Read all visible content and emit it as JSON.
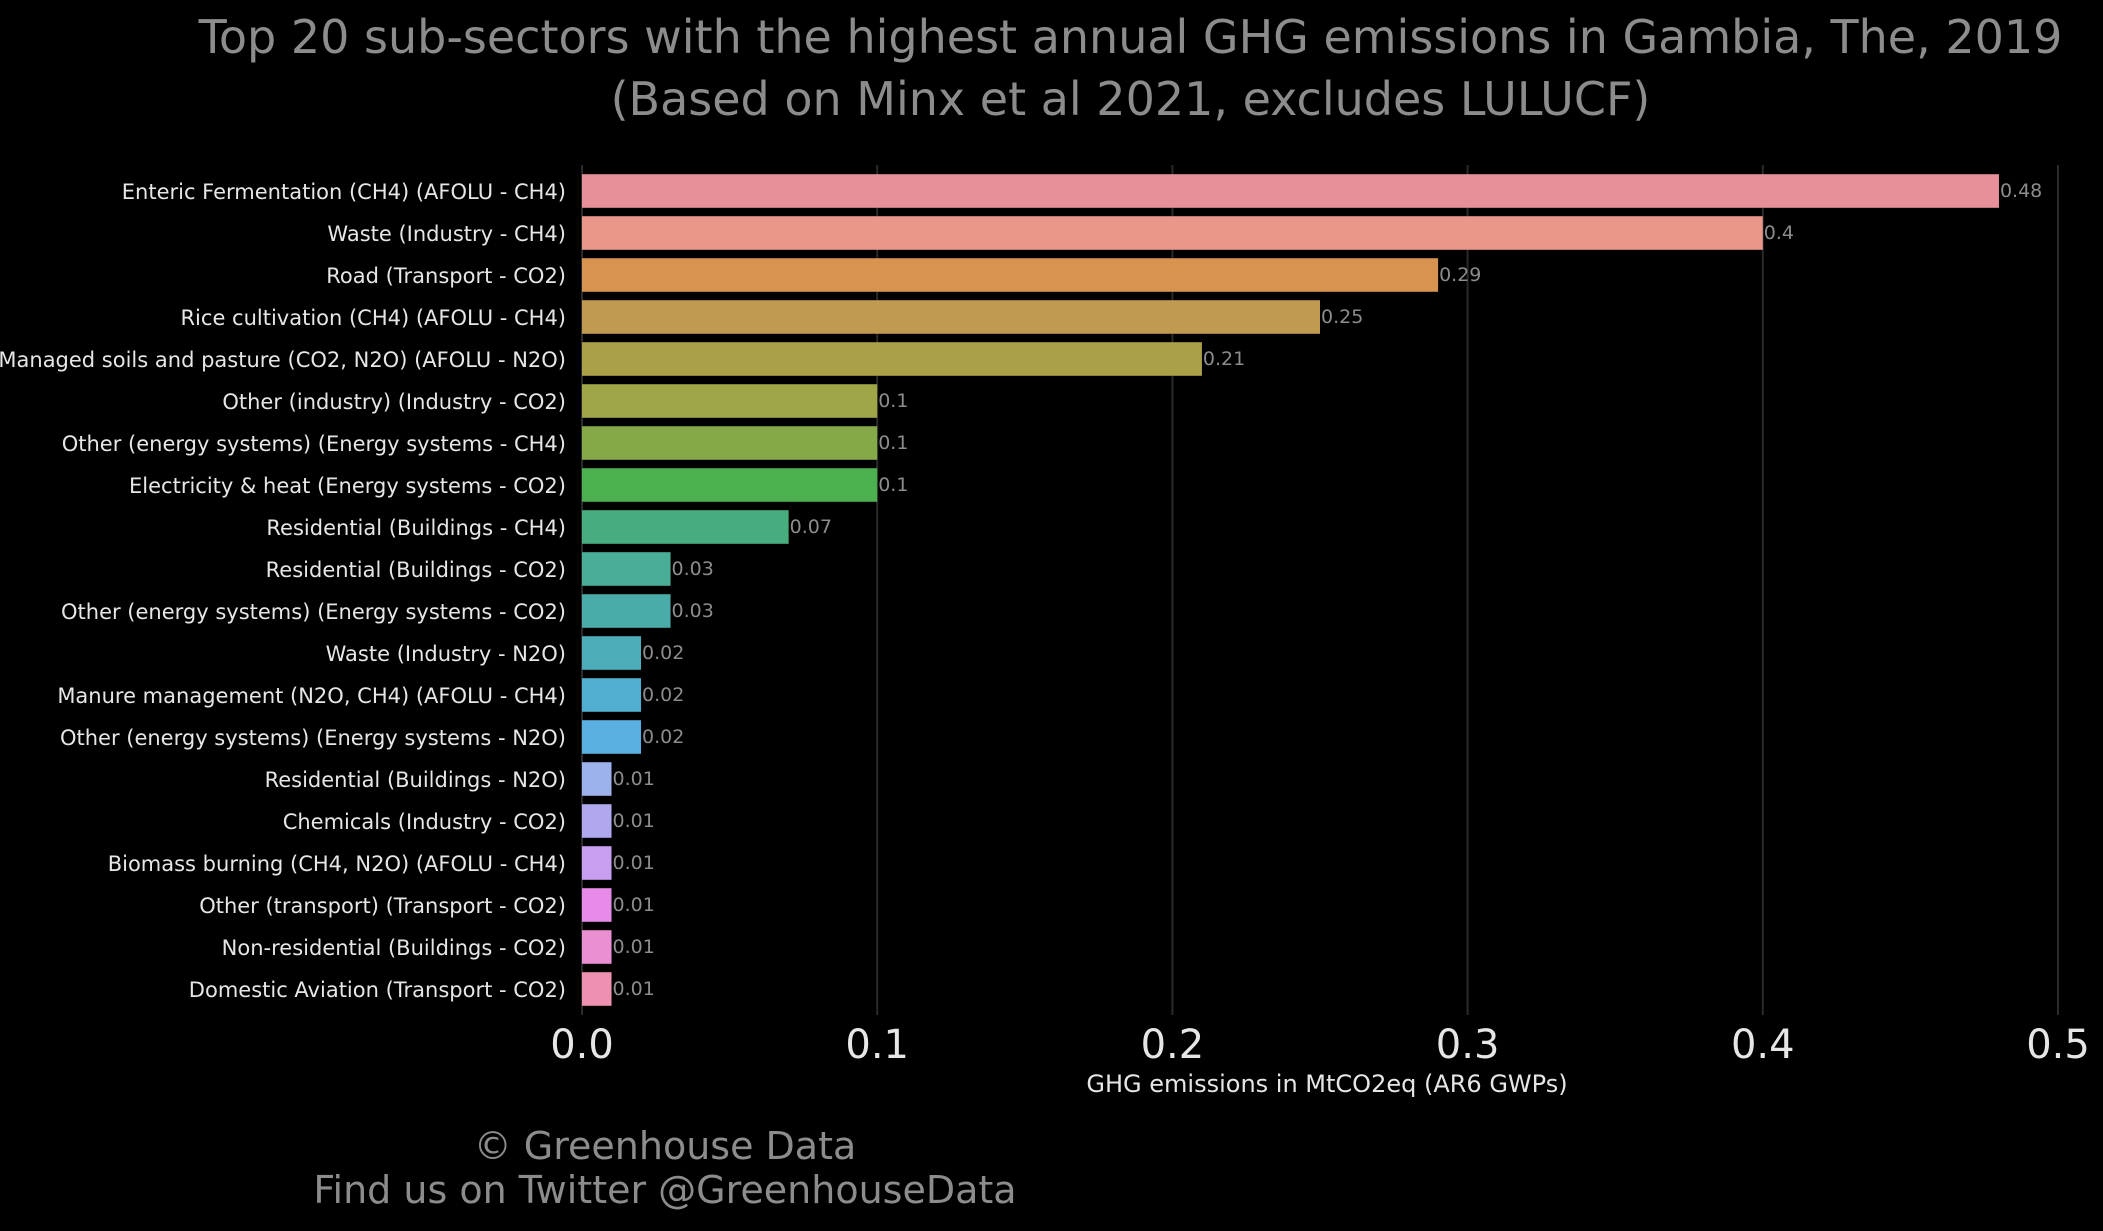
{
  "chart_data": {
    "type": "bar",
    "orientation": "horizontal",
    "title": "Top 20 sub-sectors with the highest annual GHG emissions in Gambia, The, 2019",
    "subtitle": "(Based on Minx et al 2021, excludes LULUCF)",
    "xlabel": "GHG emissions in MtCO2eq (AR6 GWPs)",
    "ylabel": "",
    "xlim": [
      0,
      0.5
    ],
    "xticks": [
      "0.0",
      "0.1",
      "0.2",
      "0.3",
      "0.4",
      "0.5"
    ],
    "grid": "vertical",
    "categories": [
      "Enteric Fermentation (CH4) (AFOLU - CH4)",
      "Waste (Industry - CH4)",
      "Road (Transport - CO2)",
      "Rice cultivation (CH4) (AFOLU - CH4)",
      "Managed soils and pasture (CO2, N2O) (AFOLU - N2O)",
      "Other (industry) (Industry - CO2)",
      "Other (energy systems) (Energy systems - CH4)",
      "Electricity & heat (Energy systems - CO2)",
      "Residential (Buildings - CH4)",
      "Residential (Buildings - CO2)",
      "Other (energy systems) (Energy systems - CO2)",
      "Waste (Industry - N2O)",
      "Manure management (N2O, CH4) (AFOLU - CH4)",
      "Other (energy systems) (Energy systems - N2O)",
      "Residential (Buildings - N2O)",
      "Chemicals (Industry - CO2)",
      "Biomass burning (CH4, N2O) (AFOLU - CH4)",
      "Other (transport) (Transport - CO2)",
      "Non-residential (Buildings - CO2)",
      "Domestic Aviation (Transport - CO2)"
    ],
    "values": [
      0.48,
      0.4,
      0.29,
      0.25,
      0.21,
      0.1,
      0.1,
      0.1,
      0.07,
      0.03,
      0.03,
      0.02,
      0.02,
      0.02,
      0.01,
      0.01,
      0.01,
      0.01,
      0.01,
      0.01
    ],
    "value_labels": [
      "0.48",
      "0.4",
      "0.29",
      "0.25",
      "0.21",
      "0.1",
      "0.1",
      "0.1",
      "0.07",
      "0.03",
      "0.03",
      "0.02",
      "0.02",
      "0.02",
      "0.01",
      "0.01",
      "0.01",
      "0.01",
      "0.01",
      "0.01"
    ],
    "colors": [
      "#e8909a",
      "#e8978a",
      "#d89350",
      "#c09a50",
      "#aba048",
      "#9ea648",
      "#85a848",
      "#4caf50",
      "#48ad7e",
      "#4aae96",
      "#4aaca8",
      "#4cadb8",
      "#50aed0",
      "#58afe0",
      "#9cb2ec",
      "#b0a8ee",
      "#c89ef0",
      "#e68ce8",
      "#ea90d2",
      "#ee90b2"
    ]
  },
  "credits": {
    "line1": "© Greenhouse Data",
    "line2": "Find us on Twitter @GreenhouseData"
  },
  "theme": {
    "background": "#000000",
    "title_color": "#8c8c8c",
    "label_color": "#e6e6e6",
    "value_label_color": "#8c8c8c",
    "grid_color": "#2a2a2a"
  }
}
